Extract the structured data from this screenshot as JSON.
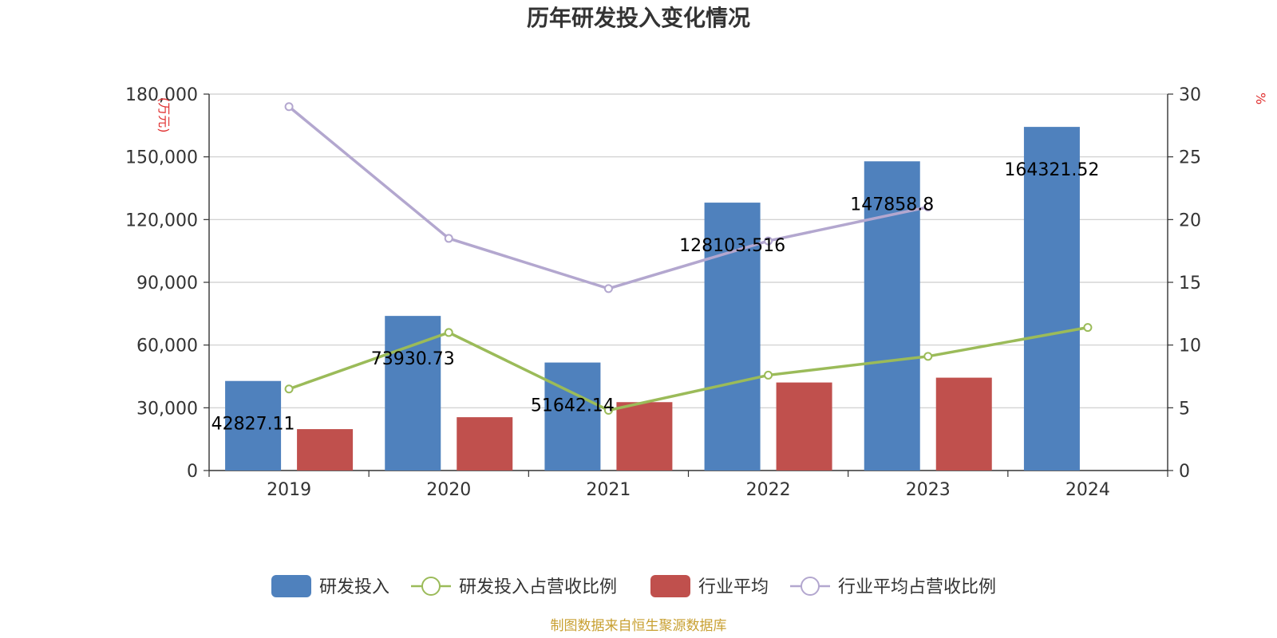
{
  "chart_data": {
    "type": "bar",
    "title": "历年研发投入变化情况",
    "categories": [
      "2019",
      "2020",
      "2021",
      "2022",
      "2023",
      "2024"
    ],
    "y_left": {
      "unit": "(万元)",
      "ylim": [
        0,
        180000
      ],
      "ticks": [
        "0",
        "30,000",
        "60,000",
        "90,000",
        "120,000",
        "150,000",
        "180,000"
      ]
    },
    "y_right": {
      "unit": "%",
      "ylim": [
        0,
        30
      ],
      "ticks": [
        "0",
        "5",
        "10",
        "15",
        "20",
        "25",
        "30"
      ]
    },
    "series": [
      {
        "name": "研发投入",
        "kind": "bar",
        "axis": "left",
        "color": "#4f81bd",
        "values": [
          42827.11,
          73930.73,
          51642.14,
          128103.516,
          147858.8,
          164321.52
        ],
        "labels": [
          "42827.11",
          "73930.73",
          "51642.14",
          "128103.516",
          "147858.8",
          "164321.52"
        ]
      },
      {
        "name": "研发投入占营收比例",
        "kind": "line",
        "axis": "right",
        "color": "#9bbb59",
        "values": [
          6.5,
          11.0,
          4.8,
          7.6,
          9.1,
          11.4
        ]
      },
      {
        "name": "行业平均",
        "kind": "bar",
        "axis": "left",
        "color": "#c0504d",
        "values": [
          19800,
          25500,
          32700,
          42100,
          44400,
          null
        ]
      },
      {
        "name": "行业平均占营收比例",
        "kind": "line",
        "axis": "right",
        "color": "#b3a7cf",
        "values": [
          29.0,
          18.5,
          14.5,
          18.3,
          21.0,
          null
        ]
      }
    ],
    "legend_position": "bottom",
    "grid": true
  },
  "source": "制图数据来自恒生聚源数据库"
}
